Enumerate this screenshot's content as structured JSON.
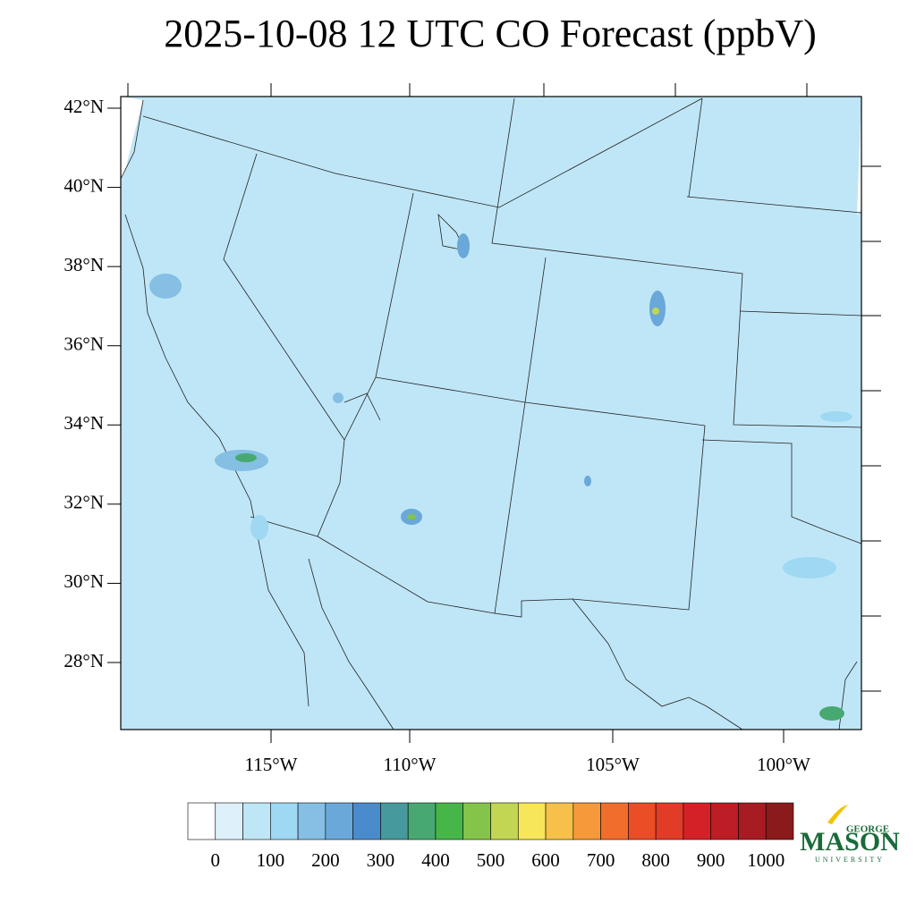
{
  "title": "2025-10-08 12 UTC CO Forecast (ppbV)",
  "map": {
    "lat_ticks": [
      {
        "value": 42,
        "label": "42°N"
      },
      {
        "value": 40,
        "label": "40°N"
      },
      {
        "value": 38,
        "label": "38°N"
      },
      {
        "value": 36,
        "label": "36°N"
      },
      {
        "value": 34,
        "label": "34°N"
      },
      {
        "value": 32,
        "label": "32°N"
      },
      {
        "value": 30,
        "label": "30°N"
      },
      {
        "value": 28,
        "label": "28°N"
      }
    ],
    "lon_ticks": [
      {
        "value": -115,
        "label": "115°W"
      },
      {
        "value": -110,
        "label": "110°W"
      },
      {
        "value": -105,
        "label": "105°W"
      },
      {
        "value": -100,
        "label": "100°W"
      }
    ]
  },
  "colorbar": {
    "levels": [
      0,
      50,
      100,
      150,
      200,
      250,
      300,
      350,
      400,
      450,
      500,
      550,
      600,
      650,
      700,
      750,
      800,
      850,
      900,
      950,
      1000
    ],
    "ticks": [
      0,
      100,
      200,
      300,
      400,
      500,
      600,
      700,
      800,
      900,
      1000
    ],
    "colors": [
      "#ffffff",
      "#def1fa",
      "#bfe6f7",
      "#9ed8f2",
      "#85bfe3",
      "#6aa8d9",
      "#4a8bcb",
      "#46999c",
      "#48a872",
      "#46b648",
      "#85c44b",
      "#c2d654",
      "#f8e65a",
      "#f7c04b",
      "#f5993b",
      "#f16d2b",
      "#ea4e27",
      "#e03c27",
      "#d42127",
      "#bd1d24",
      "#a61c22",
      "#8b1a1c"
    ]
  },
  "logo": {
    "top": "GEORGE",
    "name": "MASON",
    "bottom": "UNIVERSITY"
  }
}
